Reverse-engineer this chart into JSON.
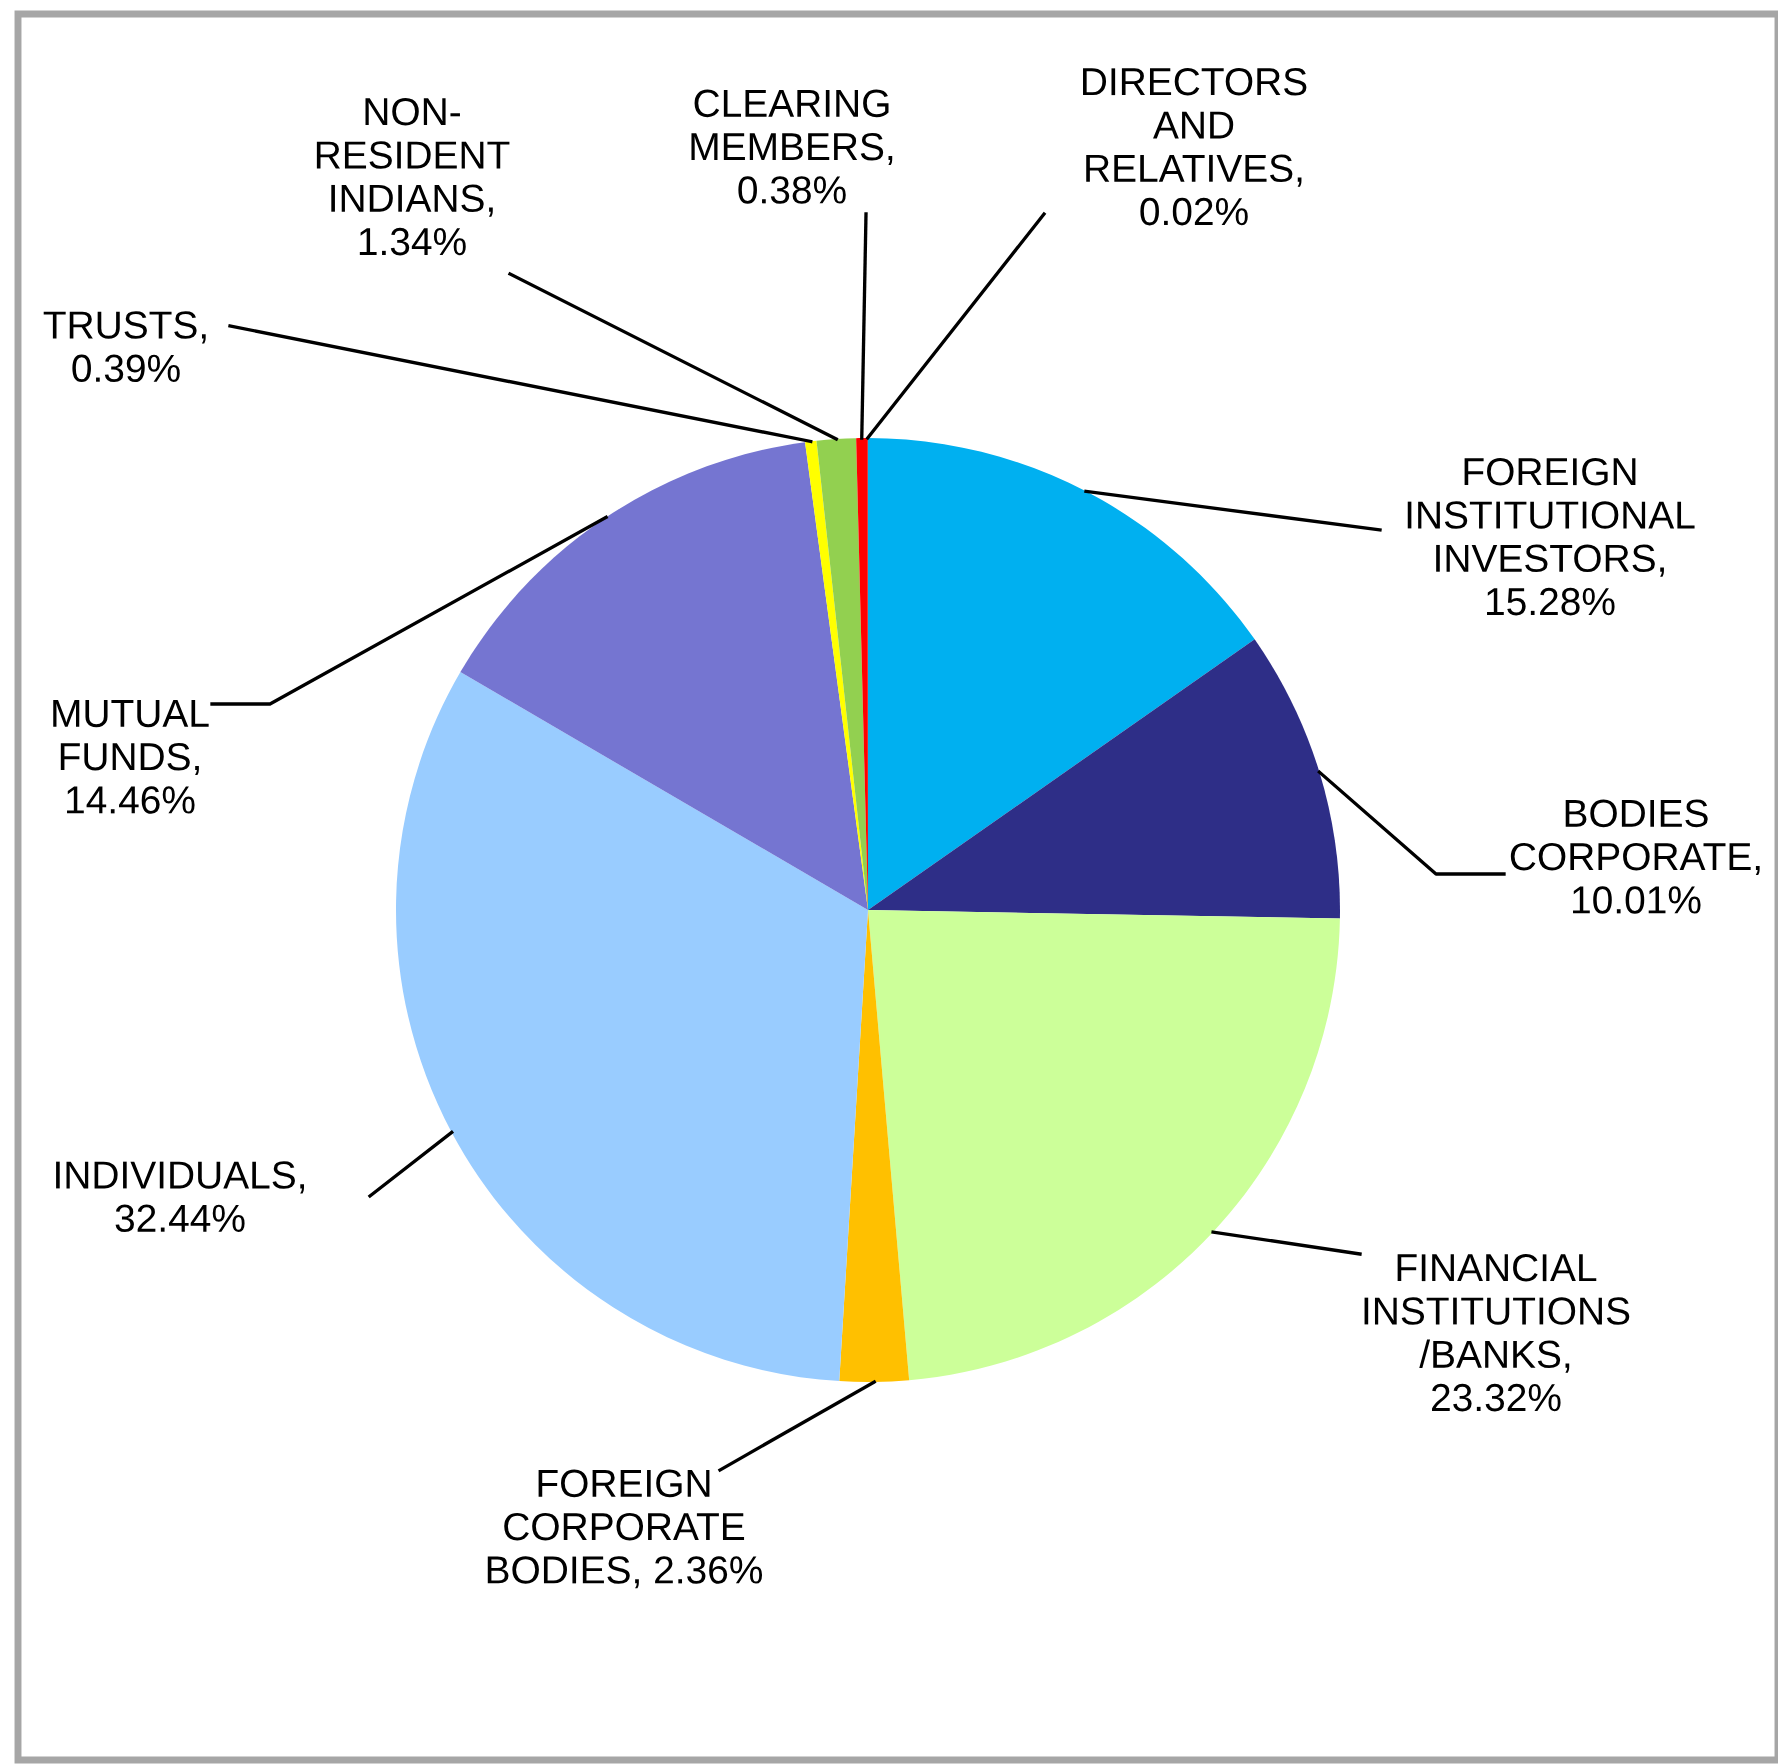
{
  "chart_data": {
    "type": "pie",
    "categories": [
      "FOREIGN\nINSTITUTIONAL\nINVESTORS,\n15.28%",
      "BODIES\nCORPORATE,\n10.01%",
      "FINANCIAL\nINSTITUTIONS\n/BANKS,\n23.32%",
      "FOREIGN\nCORPORATE\nBODIES, 2.36%",
      "INDIVIDUALS,\n32.44%",
      "MUTUAL\nFUNDS,\n14.46%",
      "TRUSTS,\n0.39%",
      "NON-\nRESIDENT\nINDIANS,\n1.34%",
      "CLEARING\nMEMBERS,\n0.38%",
      "DIRECTORS\nAND\nRELATIVES,\n0.02%"
    ],
    "values": [
      15.28,
      10.01,
      23.32,
      2.36,
      32.44,
      14.46,
      0.39,
      1.34,
      0.38,
      0.02
    ],
    "colors": [
      "#00b0f0",
      "#2e2e87",
      "#ccff99",
      "#ffc000",
      "#99ccff",
      "#7575d1",
      "#ffff00",
      "#92d050",
      "#ff0000",
      "#c00000"
    ]
  }
}
